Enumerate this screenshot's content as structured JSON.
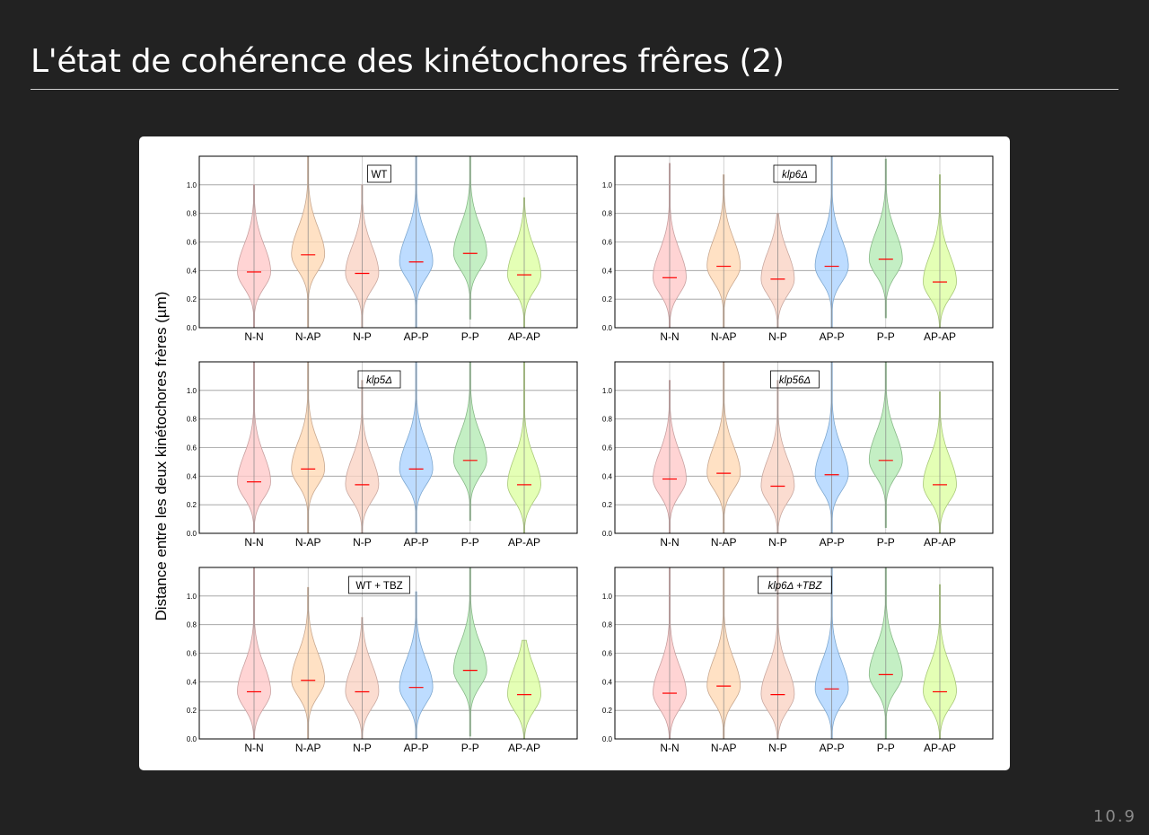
{
  "slide": {
    "title": "L'état de cohérence des kinétochores frêres (2)",
    "page_number": "10.9"
  },
  "figure": {
    "ylabel": "Distance entre les deux kinétochores frères (µm)"
  },
  "chart_data": {
    "type": "violin",
    "categories": [
      "N-N",
      "N-AP",
      "N-P",
      "AP-P",
      "P-P",
      "AP-AP"
    ],
    "category_colors": [
      "#ffc8c8",
      "#ffd9b4",
      "#fad2c3",
      "#aad2ff",
      "#b4ebb4",
      "#dcffa0"
    ],
    "median_color": "#ff0000",
    "yticks": [
      "0.0",
      "0.2",
      "0.4",
      "0.6",
      "0.8",
      "1.0"
    ],
    "ylim": [
      0,
      1.2
    ],
    "grid": true,
    "panels": [
      {
        "title": "WT",
        "medians": [
          0.39,
          0.51,
          0.38,
          0.46,
          0.52,
          0.37
        ],
        "max": [
          1.0,
          1.2,
          1.0,
          1.2,
          1.2,
          0.91
        ],
        "min": [
          0.0,
          0.0,
          0.0,
          0.0,
          0.06,
          0.0
        ]
      },
      {
        "title": "klp6Δ",
        "medians": [
          0.35,
          0.43,
          0.34,
          0.43,
          0.48,
          0.32
        ],
        "max": [
          1.15,
          1.07,
          0.8,
          1.2,
          1.18,
          1.07
        ],
        "min": [
          0.0,
          0.0,
          0.0,
          0.0,
          0.07,
          0.0
        ]
      },
      {
        "title": "klp5Δ",
        "medians": [
          0.36,
          0.45,
          0.34,
          0.45,
          0.51,
          0.34
        ],
        "max": [
          1.2,
          1.2,
          1.07,
          1.2,
          1.2,
          1.2
        ],
        "min": [
          0.0,
          0.0,
          0.0,
          0.0,
          0.09,
          0.0
        ]
      },
      {
        "title": "klp56Δ",
        "medians": [
          0.38,
          0.42,
          0.33,
          0.41,
          0.51,
          0.34
        ],
        "max": [
          1.07,
          1.2,
          1.07,
          1.2,
          1.2,
          0.99
        ],
        "min": [
          0.0,
          0.0,
          0.0,
          0.0,
          0.04,
          0.0
        ]
      },
      {
        "title": "WT + TBZ",
        "medians": [
          0.33,
          0.41,
          0.33,
          0.36,
          0.48,
          0.31
        ],
        "max": [
          1.2,
          1.06,
          0.85,
          1.03,
          1.2,
          0.69
        ],
        "min": [
          0.0,
          0.0,
          0.0,
          0.0,
          0.02,
          0.0
        ]
      },
      {
        "title": "klp6Δ +TBZ",
        "medians": [
          0.32,
          0.37,
          0.31,
          0.35,
          0.45,
          0.33
        ],
        "max": [
          1.2,
          1.2,
          1.2,
          1.2,
          1.2,
          1.08
        ],
        "min": [
          0.0,
          0.0,
          0.0,
          0.0,
          0.0,
          0.0
        ]
      }
    ]
  }
}
